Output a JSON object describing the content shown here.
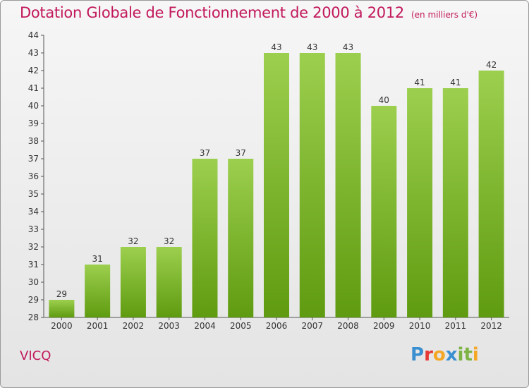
{
  "title": "Dotation Globale de Fonctionnement de 2000 à 2012",
  "unit": "(en milliers d'€)",
  "commune": "VICQ",
  "logo": {
    "letters": [
      "P",
      "r",
      "o",
      "x",
      "i",
      "t",
      "i"
    ],
    "colors": [
      "#3a8fd0",
      "#e53935",
      "#f5a623",
      "#3a8fd0",
      "#7cb342",
      "#7cb342",
      "#f5a623"
    ]
  },
  "colors": {
    "bar_top": "#9ccf4e",
    "bar_bottom": "#5f9b10",
    "text": "#c2185b",
    "axis": "#555555"
  },
  "chart_data": {
    "type": "bar",
    "title": "Dotation Globale de Fonctionnement de 2000 à 2012",
    "xlabel": "",
    "ylabel": "",
    "categories": [
      "2000",
      "2001",
      "2002",
      "2003",
      "2004",
      "2005",
      "2006",
      "2007",
      "2008",
      "2009",
      "2010",
      "2011",
      "2012"
    ],
    "values": [
      29,
      31,
      32,
      32,
      37,
      37,
      43,
      43,
      43,
      40,
      41,
      41,
      42
    ],
    "ylim": [
      28,
      44
    ],
    "yticks": [
      28,
      29,
      30,
      31,
      32,
      33,
      34,
      35,
      36,
      37,
      38,
      39,
      40,
      41,
      42,
      43,
      44
    ],
    "grid": false,
    "data_labels": true
  }
}
